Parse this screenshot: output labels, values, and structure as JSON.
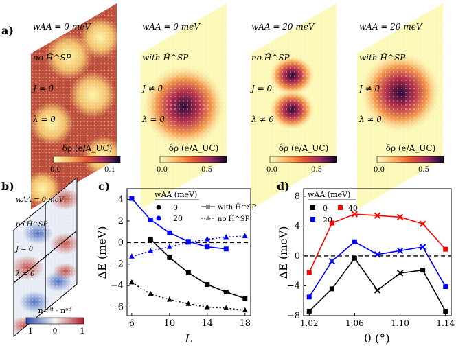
{
  "panel_labels": {
    "a": "a)",
    "b": "b)",
    "c": "c)",
    "d": "d)"
  },
  "density_maps": [
    {
      "lines": [
        "wAA = 0 meV",
        "no Ĥ^SP",
        "J = 0",
        "λ = 0"
      ],
      "colorbar_label": "δρ (e/A_UC)",
      "ticks": [
        "0.0",
        "0.1"
      ],
      "pattern": "moire"
    },
    {
      "lines": [
        "wAA = 0 meV",
        "with Ĥ^SP",
        "J ≠ 0",
        "λ = 0"
      ],
      "colorbar_label": "δρ (e/A_UC)",
      "ticks": [
        "0.0",
        "0.5"
      ],
      "pattern": "center"
    },
    {
      "lines": [
        "wAA = 20 meV",
        "no Ĥ^SP",
        "J = 0",
        "λ ≠ 0"
      ],
      "colorbar_label": "δρ (e/A_UC)",
      "ticks": [
        "0.0",
        "0.5"
      ],
      "pattern": "double"
    },
    {
      "lines": [
        "wAA = 20 meV",
        "with Ĥ^SP",
        "J ≠ 0",
        "λ ≠ 0"
      ],
      "colorbar_label": "δρ (e/A_UC)",
      "ticks": [
        "0.0",
        "0.5"
      ],
      "pattern": "center"
    }
  ],
  "panel_b": {
    "lines": [
      "wAA = 0 meV",
      "no Ĥ^SP",
      "J = 0",
      "λ = 0"
    ],
    "colorbar_label": "n₊ᵒᶠᶠ · nᵒᶠᶠ",
    "ticks": [
      "−1",
      "0",
      "1"
    ]
  },
  "chart_data": [
    {
      "type": "line",
      "title": "",
      "xlabel": "L",
      "ylabel": "ΔE (meV)",
      "xlim": [
        5.5,
        18.6
      ],
      "ylim": [
        -6.8,
        5.0
      ],
      "xticks": [
        6,
        10,
        14,
        18
      ],
      "yticks": [
        -6,
        -4,
        -2,
        0,
        2,
        4
      ],
      "hline": 0,
      "legend_title": "wAA (meV)",
      "legend_entries": [
        "0",
        "20"
      ],
      "style_entries": [
        "with Ĥ^SP",
        "no Ĥ^SP"
      ],
      "series": [
        {
          "name": "0, with Ĥ^SP",
          "color": "#000000",
          "marker": "square",
          "dash": false,
          "x": [
            8,
            10,
            12,
            14,
            16,
            18
          ],
          "values": [
            0.3,
            -1.4,
            -2.8,
            -3.9,
            -4.6,
            -5.2
          ]
        },
        {
          "name": "20, with Ĥ^SP",
          "color": "#0000ff",
          "marker": "square",
          "dash": false,
          "x": [
            6,
            8,
            10,
            12,
            14,
            16
          ],
          "values": [
            4.1,
            2.1,
            0.9,
            0.1,
            -0.4,
            -0.6
          ]
        },
        {
          "name": "0, no Ĥ^SP",
          "color": "#000000",
          "marker": "triangle",
          "dash": true,
          "x": [
            6,
            8,
            10,
            12,
            14,
            16,
            18
          ],
          "values": [
            -3.7,
            -4.8,
            -5.3,
            -5.7,
            -6.0,
            -6.1,
            -6.3
          ]
        },
        {
          "name": "20, no Ĥ^SP",
          "color": "#0000ff",
          "marker": "triangle",
          "dash": true,
          "x": [
            6,
            8,
            10,
            12,
            14,
            16,
            18
          ],
          "values": [
            -1.3,
            -0.8,
            -0.4,
            0.0,
            0.3,
            0.5,
            0.6
          ]
        }
      ]
    },
    {
      "type": "line",
      "title": "",
      "xlabel": "θ (°)",
      "ylabel": "ΔE (meV)",
      "xlim": [
        1.015,
        1.145
      ],
      "ylim": [
        -8.0,
        9.0
      ],
      "xticks": [
        "1.02",
        "1.06",
        "1.10",
        "1.14"
      ],
      "yticks": [
        -8,
        -4,
        0,
        4,
        8
      ],
      "hline": 0,
      "legend_title": "wAA (meV)",
      "legend_entries": [
        "0",
        "40",
        "20"
      ],
      "series": [
        {
          "name": "0",
          "color": "#000000",
          "x": [
            1.02,
            1.04,
            1.06,
            1.08,
            1.1,
            1.12,
            1.14
          ],
          "values": [
            -7.4,
            -4.4,
            -0.3,
            -4.6,
            -2.3,
            -1.9,
            -7.4
          ],
          "markers": [
            "square",
            "square",
            "square",
            "cross",
            "cross",
            "square",
            "square"
          ]
        },
        {
          "name": "20",
          "color": "#0000ff",
          "x": [
            1.02,
            1.04,
            1.06,
            1.08,
            1.1,
            1.12,
            1.14
          ],
          "values": [
            -5.5,
            -0.7,
            1.9,
            0.2,
            0.7,
            1.2,
            -4.1
          ],
          "markers": [
            "square",
            "cross",
            "square",
            "cross",
            "cross",
            "cross",
            "square"
          ]
        },
        {
          "name": "40",
          "color": "#ff0000",
          "x": [
            1.02,
            1.04,
            1.06,
            1.08,
            1.1,
            1.12,
            1.14
          ],
          "values": [
            -2.2,
            4.4,
            5.6,
            5.4,
            5.2,
            4.3,
            0.9
          ],
          "markers": [
            "square",
            "square",
            "cross",
            "cross",
            "cross",
            "cross",
            "square"
          ]
        }
      ]
    }
  ]
}
